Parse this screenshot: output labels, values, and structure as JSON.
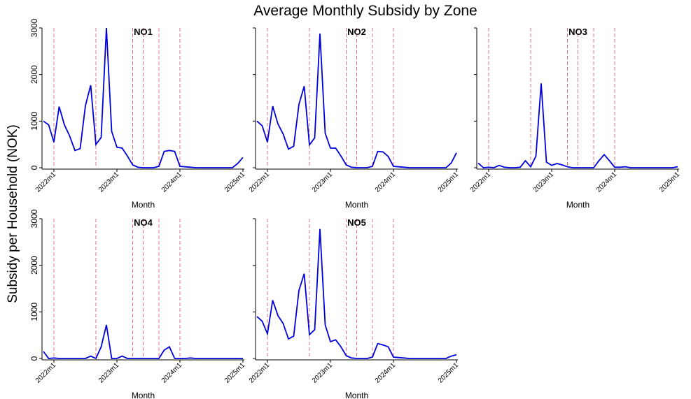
{
  "chart_data": {
    "type": "line",
    "title": "Average Monthly Subsidy by Zone",
    "x_label": "Month",
    "y_label": "Subsidy per Household (NOK)",
    "categories": [
      null,
      null,
      "2022m1",
      null,
      null,
      null,
      null,
      null,
      null,
      null,
      null,
      null,
      null,
      null,
      "2023m1",
      null,
      null,
      null,
      null,
      null,
      null,
      null,
      null,
      null,
      null,
      null,
      "2024m1",
      null,
      null,
      null,
      null,
      null,
      null,
      null,
      null,
      null,
      null,
      null,
      "2025m1"
    ],
    "ylim": [
      0,
      3000
    ],
    "yticks": [
      0,
      1000,
      2000,
      3000
    ],
    "vlines": [
      2,
      10,
      17,
      19,
      22,
      26
    ],
    "vline_color": "#e07080",
    "series": [
      {
        "name": "NO1",
        "color": "#0000dd",
        "values": [
          1000,
          920,
          550,
          1310,
          920,
          680,
          370,
          410,
          1330,
          1770,
          500,
          650,
          3000,
          780,
          440,
          420,
          250,
          60,
          10,
          0,
          0,
          0,
          30,
          350,
          370,
          350,
          30,
          20,
          10,
          0,
          0,
          0,
          0,
          0,
          0,
          0,
          0,
          90,
          220
        ]
      },
      {
        "name": "NO2",
        "color": "#0000dd",
        "values": [
          1000,
          900,
          550,
          1320,
          940,
          720,
          400,
          460,
          1360,
          1750,
          490,
          640,
          2880,
          740,
          420,
          420,
          250,
          60,
          10,
          0,
          0,
          0,
          30,
          350,
          340,
          240,
          30,
          20,
          10,
          0,
          0,
          0,
          0,
          0,
          0,
          0,
          0,
          100,
          320
        ]
      },
      {
        "name": "NO3",
        "color": "#0000dd",
        "values": [
          100,
          0,
          10,
          0,
          50,
          10,
          0,
          0,
          10,
          150,
          20,
          250,
          1810,
          120,
          50,
          90,
          60,
          20,
          0,
          0,
          0,
          0,
          0,
          150,
          280,
          150,
          10,
          10,
          20,
          0,
          0,
          0,
          0,
          0,
          0,
          0,
          0,
          0,
          20
        ]
      },
      {
        "name": "NO4",
        "color": "#0000dd",
        "values": [
          150,
          0,
          10,
          0,
          0,
          0,
          0,
          0,
          0,
          50,
          0,
          250,
          720,
          0,
          0,
          50,
          0,
          0,
          0,
          0,
          0,
          0,
          0,
          180,
          250,
          0,
          0,
          0,
          10,
          0,
          0,
          0,
          0,
          0,
          0,
          0,
          0,
          0,
          0
        ]
      },
      {
        "name": "NO5",
        "color": "#0000dd",
        "values": [
          900,
          800,
          530,
          1250,
          920,
          750,
          420,
          480,
          1460,
          1820,
          510,
          620,
          2780,
          720,
          360,
          400,
          250,
          60,
          10,
          0,
          0,
          0,
          30,
          320,
          290,
          250,
          30,
          20,
          10,
          0,
          0,
          0,
          0,
          0,
          0,
          0,
          0,
          50,
          80
        ]
      }
    ]
  }
}
